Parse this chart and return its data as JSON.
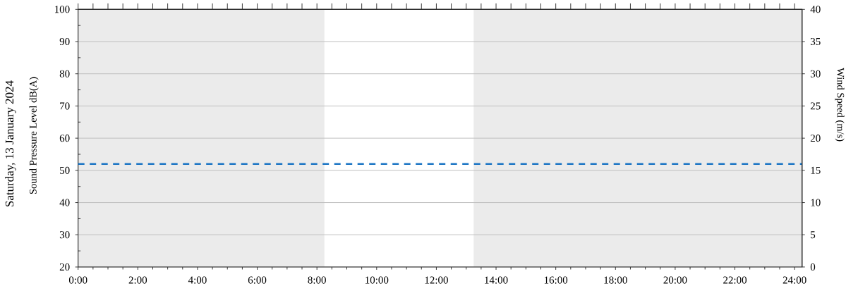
{
  "chart_data": {
    "type": "line",
    "title": "Saturday, 13 January 2024",
    "ylabel": "Sound Pressure Level dB(A)",
    "y2label": "Wind Speed (m/s)",
    "xlim": [
      0,
      24.25
    ],
    "xticks": [
      {
        "value": 0,
        "label": "0:00"
      },
      {
        "value": 0.5,
        "label": null
      },
      {
        "value": 1,
        "label": null
      },
      {
        "value": 1.5,
        "label": null
      },
      {
        "value": 2,
        "label": "2:00"
      },
      {
        "value": 2.5,
        "label": null
      },
      {
        "value": 3,
        "label": null
      },
      {
        "value": 3.5,
        "label": null
      },
      {
        "value": 4,
        "label": "4:00"
      },
      {
        "value": 4.5,
        "label": null
      },
      {
        "value": 5,
        "label": null
      },
      {
        "value": 5.5,
        "label": null
      },
      {
        "value": 6,
        "label": "6:00"
      },
      {
        "value": 6.5,
        "label": null
      },
      {
        "value": 7,
        "label": null
      },
      {
        "value": 7.5,
        "label": null
      },
      {
        "value": 8,
        "label": "8:00"
      },
      {
        "value": 8.5,
        "label": null
      },
      {
        "value": 9,
        "label": null
      },
      {
        "value": 9.5,
        "label": null
      },
      {
        "value": 10,
        "label": "10:00"
      },
      {
        "value": 10.5,
        "label": null
      },
      {
        "value": 11,
        "label": null
      },
      {
        "value": 11.5,
        "label": null
      },
      {
        "value": 12,
        "label": "12:00"
      },
      {
        "value": 12.5,
        "label": null
      },
      {
        "value": 13,
        "label": null
      },
      {
        "value": 13.5,
        "label": null
      },
      {
        "value": 14,
        "label": "14:00"
      },
      {
        "value": 14.5,
        "label": null
      },
      {
        "value": 15,
        "label": null
      },
      {
        "value": 15.5,
        "label": null
      },
      {
        "value": 16,
        "label": "16:00"
      },
      {
        "value": 16.5,
        "label": null
      },
      {
        "value": 17,
        "label": null
      },
      {
        "value": 17.5,
        "label": null
      },
      {
        "value": 18,
        "label": "18:00"
      },
      {
        "value": 18.5,
        "label": null
      },
      {
        "value": 19,
        "label": null
      },
      {
        "value": 19.5,
        "label": null
      },
      {
        "value": 20,
        "label": "20:00"
      },
      {
        "value": 20.5,
        "label": null
      },
      {
        "value": 21,
        "label": null
      },
      {
        "value": 21.5,
        "label": null
      },
      {
        "value": 22,
        "label": "22:00"
      },
      {
        "value": 22.5,
        "label": null
      },
      {
        "value": 23,
        "label": null
      },
      {
        "value": 23.5,
        "label": null
      },
      {
        "value": 24,
        "label": "24:00"
      }
    ],
    "ylim": [
      20,
      100
    ],
    "yticks": [
      20,
      {
        "value": 25,
        "label": null
      },
      30,
      {
        "value": 35,
        "label": null
      },
      40,
      {
        "value": 45,
        "label": null
      },
      50,
      {
        "value": 55,
        "label": null
      },
      60,
      {
        "value": 65,
        "label": null
      },
      70,
      {
        "value": 75,
        "label": null
      },
      80,
      {
        "value": 85,
        "label": null
      },
      90,
      {
        "value": 95,
        "label": null
      },
      100
    ],
    "y2lim": [
      0,
      40
    ],
    "y2ticks": [
      0,
      5,
      10,
      15,
      20,
      25,
      30,
      35,
      40
    ],
    "grid": "y",
    "ref_lines": [
      {
        "axis": "y",
        "value": 52,
        "color": "#1b75c4",
        "line_style": "dashed"
      }
    ],
    "bands": [
      {
        "axis": "x",
        "from": 0,
        "to": 8.25,
        "color": "#ebebeb"
      },
      {
        "axis": "x",
        "from": 13.25,
        "to": 24.25,
        "color": "#ebebeb"
      }
    ]
  }
}
